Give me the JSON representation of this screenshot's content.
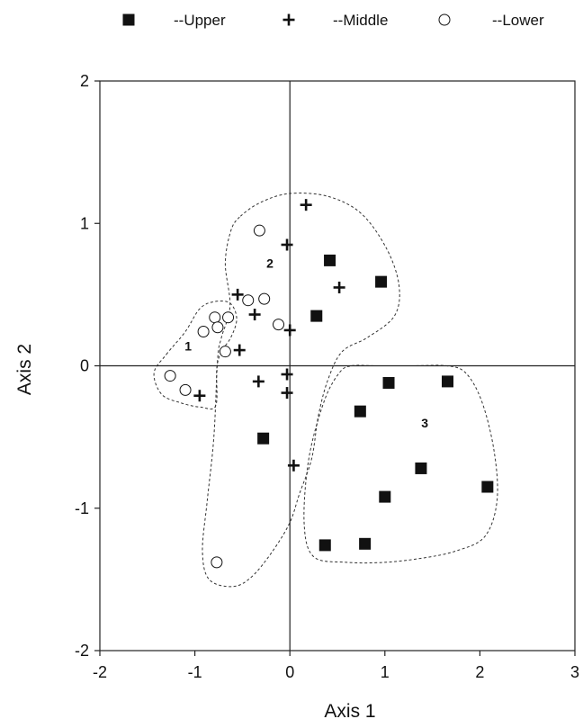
{
  "chart_data": {
    "type": "scatter",
    "title": "",
    "xlabel": "Axis  1",
    "ylabel": "Axis  2",
    "xlim": [
      -2,
      3
    ],
    "ylim": [
      -2,
      2
    ],
    "xticks": [
      "-2",
      "-1",
      "0",
      "1",
      "2",
      "3"
    ],
    "yticks": [
      "-2",
      "-1",
      "0",
      "1",
      "2"
    ],
    "grid": false,
    "zero_lines": true,
    "legend_position": "top",
    "series": [
      {
        "name": "--Upper",
        "marker": "filled-square",
        "color": "#111111",
        "points": [
          [
            0.42,
            0.74
          ],
          [
            0.96,
            0.59
          ],
          [
            0.28,
            0.35
          ],
          [
            1.04,
            -0.12
          ],
          [
            1.66,
            -0.11
          ],
          [
            0.74,
            -0.32
          ],
          [
            1.38,
            -0.72
          ],
          [
            2.08,
            -0.85
          ],
          [
            1.0,
            -0.92
          ],
          [
            0.37,
            -1.26
          ],
          [
            0.79,
            -1.25
          ],
          [
            -0.28,
            -0.51
          ]
        ]
      },
      {
        "name": "--Middle",
        "marker": "plus",
        "color": "#111111",
        "points": [
          [
            0.17,
            1.13
          ],
          [
            -0.03,
            0.85
          ],
          [
            0.52,
            0.55
          ],
          [
            -0.55,
            0.5
          ],
          [
            -0.37,
            0.36
          ],
          [
            0.0,
            0.25
          ],
          [
            -0.53,
            0.11
          ],
          [
            -0.33,
            -0.11
          ],
          [
            -0.03,
            -0.06
          ],
          [
            -0.03,
            -0.19
          ],
          [
            -0.95,
            -0.21
          ],
          [
            0.04,
            -0.7
          ]
        ]
      },
      {
        "name": "--Lower",
        "marker": "open-circle",
        "color": "#111111",
        "points": [
          [
            -0.32,
            0.95
          ],
          [
            -0.44,
            0.46
          ],
          [
            -0.27,
            0.47
          ],
          [
            -0.79,
            0.34
          ],
          [
            -0.76,
            0.27
          ],
          [
            -0.65,
            0.34
          ],
          [
            -0.91,
            0.24
          ],
          [
            -0.68,
            0.1
          ],
          [
            -0.12,
            0.29
          ],
          [
            -1.26,
            -0.07
          ],
          [
            -1.1,
            -0.17
          ],
          [
            -0.77,
            -1.38
          ]
        ]
      }
    ],
    "regions": [
      {
        "label": "1",
        "label_at": [
          -1.07,
          0.14
        ],
        "outline": [
          [
            -1.3,
            0.08
          ],
          [
            -1.1,
            0.24
          ],
          [
            -0.95,
            0.4
          ],
          [
            -0.8,
            0.45
          ],
          [
            -0.63,
            0.44
          ],
          [
            -0.56,
            0.33
          ],
          [
            -0.62,
            0.2
          ],
          [
            -0.72,
            0.1
          ],
          [
            -0.77,
            -0.02
          ],
          [
            -0.78,
            -0.28
          ],
          [
            -0.94,
            -0.29
          ],
          [
            -1.15,
            -0.26
          ],
          [
            -1.35,
            -0.2
          ],
          [
            -1.43,
            -0.05
          ]
        ]
      },
      {
        "label": "2",
        "label_at": [
          -0.21,
          0.72
        ],
        "outline": [
          [
            -0.52,
            1.05
          ],
          [
            -0.3,
            1.15
          ],
          [
            0.0,
            1.21
          ],
          [
            0.4,
            1.19
          ],
          [
            0.75,
            1.07
          ],
          [
            1.02,
            0.82
          ],
          [
            1.15,
            0.56
          ],
          [
            1.1,
            0.35
          ],
          [
            0.82,
            0.2
          ],
          [
            0.55,
            0.1
          ],
          [
            0.4,
            -0.1
          ],
          [
            0.3,
            -0.35
          ],
          [
            0.23,
            -0.65
          ],
          [
            0.1,
            -0.9
          ],
          [
            0.0,
            -1.1
          ],
          [
            -0.18,
            -1.3
          ],
          [
            -0.4,
            -1.48
          ],
          [
            -0.6,
            -1.55
          ],
          [
            -0.85,
            -1.5
          ],
          [
            -0.92,
            -1.3
          ],
          [
            -0.87,
            -0.95
          ],
          [
            -0.8,
            -0.5
          ],
          [
            -0.76,
            0.05
          ],
          [
            -0.72,
            0.2
          ],
          [
            -0.63,
            0.42
          ],
          [
            -0.68,
            0.72
          ],
          [
            -0.62,
            0.95
          ]
        ]
      },
      {
        "label": "3",
        "label_at": [
          1.42,
          -0.4
        ],
        "outline": [
          [
            0.65,
            0.0
          ],
          [
            0.9,
            0.0
          ],
          [
            1.3,
            0.0
          ],
          [
            1.65,
            0.0
          ],
          [
            1.85,
            -0.05
          ],
          [
            2.02,
            -0.25
          ],
          [
            2.15,
            -0.6
          ],
          [
            2.18,
            -0.95
          ],
          [
            2.05,
            -1.2
          ],
          [
            1.75,
            -1.3
          ],
          [
            1.4,
            -1.35
          ],
          [
            1.0,
            -1.38
          ],
          [
            0.6,
            -1.38
          ],
          [
            0.25,
            -1.34
          ],
          [
            0.15,
            -1.1
          ],
          [
            0.2,
            -0.65
          ],
          [
            0.36,
            -0.25
          ],
          [
            0.52,
            -0.05
          ]
        ]
      }
    ]
  }
}
